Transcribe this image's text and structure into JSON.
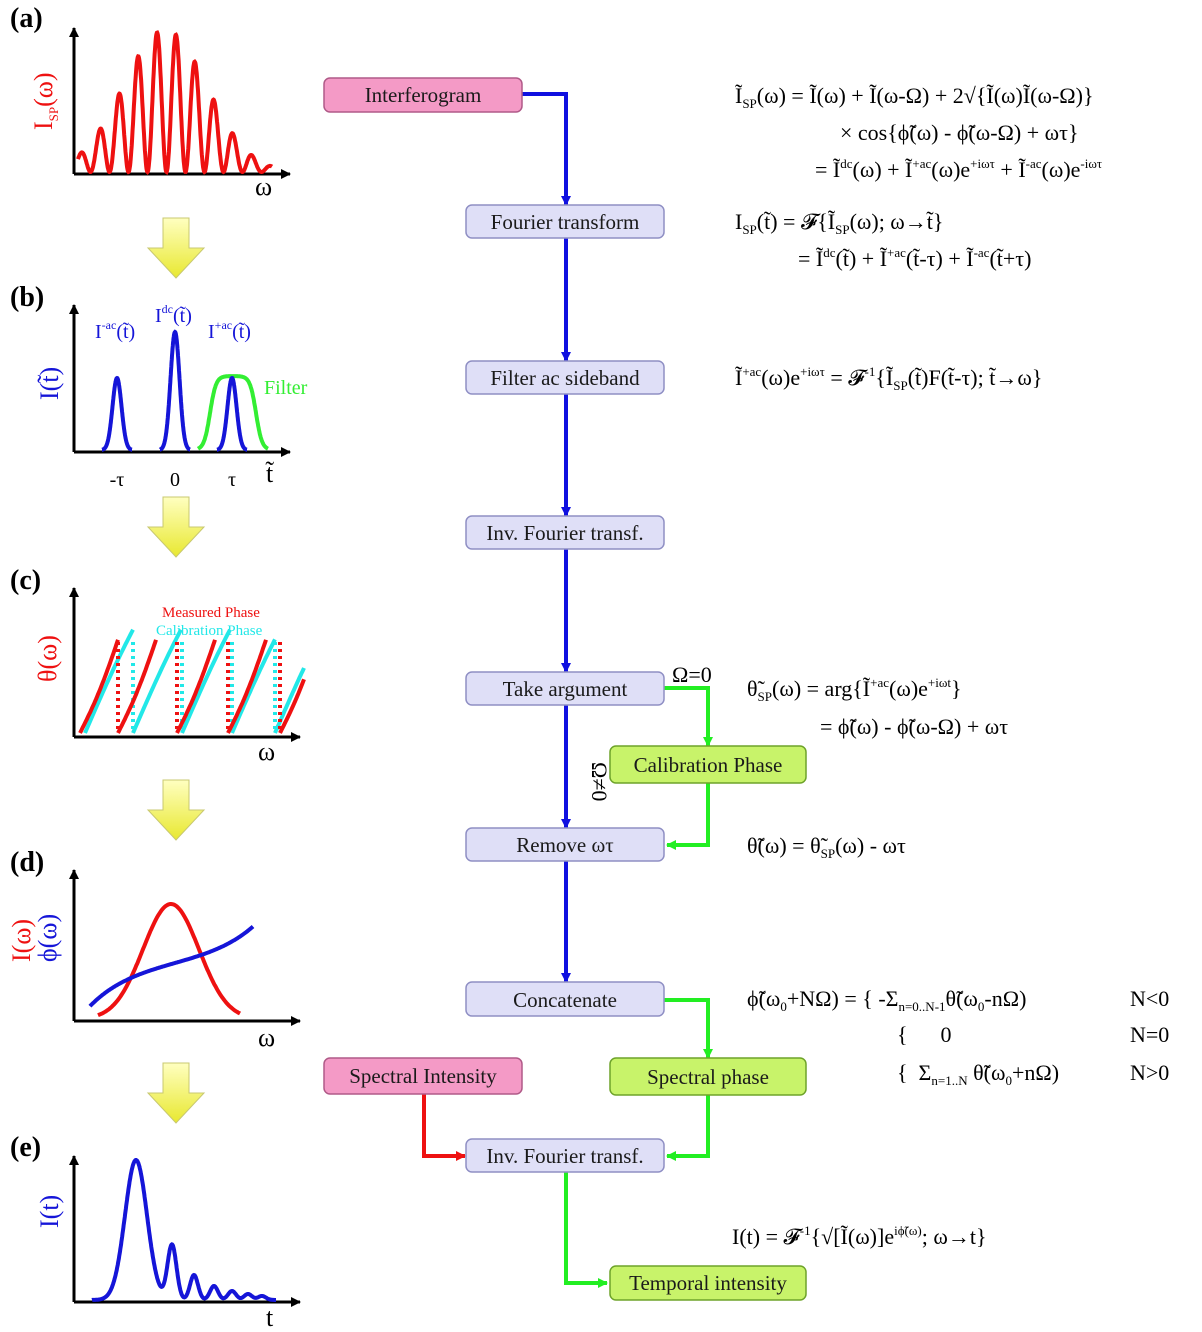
{
  "flow": {
    "interferogram": "Interferogram",
    "fourier_transform": "Fourier transform",
    "filter_sideband": "Filter ac sideband",
    "inv_fourier_1": "Inv. Fourier transf.",
    "take_argument": "Take argument",
    "calibration_phase": "Calibration Phase",
    "remove_wt": "Remove ωτ",
    "concatenate": "Concatenate",
    "spectral_intensity": "Spectral Intensity",
    "spectral_phase": "Spectral phase",
    "inv_fourier_2": "Inv. Fourier transf.",
    "temporal_intensity": "Temporal intensity",
    "omega_zero": "Ω=0",
    "omega_nonzero": "Ω≠0"
  },
  "panels": {
    "a": {
      "label": "(a)",
      "ylabel": "I",
      "ysub": "SP",
      "yarg": "(ω)",
      "xlabel": "ω"
    },
    "b": {
      "label": "(b)",
      "ylabel": "I(t̃)",
      "xlabel": "t̃",
      "peak_minus": "I",
      "peak_minus_sup": "-ac",
      "peak_minus_arg": "(t̃)",
      "peak_dc": "I",
      "peak_dc_sup": "dc",
      "peak_dc_arg": "(t̃)",
      "peak_plus": "I",
      "peak_plus_sup": "+ac",
      "peak_plus_arg": "(t̃)",
      "filter": "Filter",
      "ticks": [
        "-τ",
        "0",
        "τ"
      ]
    },
    "c": {
      "label": "(c)",
      "ylabel": "θ(ω)",
      "xlabel": "ω",
      "legend_measured": "Measured Phase",
      "legend_calibration": "Calibration Phase"
    },
    "d": {
      "label": "(d)",
      "ylabel_red": "I(ω)",
      "ylabel_blue": "ϕ(ω)",
      "xlabel": "ω"
    },
    "e": {
      "label": "(e)",
      "ylabel": "I(t)",
      "xlabel": "t"
    }
  },
  "equations": {
    "eq1_l1": "Ĩ(ω) = Ĩ(ω) + Ĩ(ω-Ω) + 2√{Ĩ(ω)Ĩ(ω-Ω)}",
    "eq1_lhs": "Ĩ",
    "eq1_lhs_sub": "SP",
    "eq1_l1_rest": "(ω) = Ĩ(ω) + Ĩ(ω-Ω) + 2√{Ĩ(ω)Ĩ(ω-Ω)}",
    "eq1_l2": "× cos{ϕ̃(ω) - ϕ̃(ω-Ω) + ωτ}",
    "eq1_l3_a": "= Ĩ",
    "eq1_l3_a_sup": "dc",
    "eq1_l3_b": "(ω) + Ĩ",
    "eq1_l3_b_sup": "+ac",
    "eq1_l3_c": "(ω)e",
    "eq1_l3_c_sup": "+iωτ",
    "eq1_l3_d": " + Ĩ",
    "eq1_l3_d_sup": "-ac",
    "eq1_l3_e": "(ω)e",
    "eq1_l3_e_sup": "-iωτ",
    "eq2_a": "I",
    "eq2_a_sub": "SP",
    "eq2_b": "(t̃) = 𝓕{Ĩ",
    "eq2_b_sub": "SP",
    "eq2_c": "(ω); ω→t̃}",
    "eq2_l2_a": "= Ĩ",
    "eq2_l2_a_sup": "dc",
    "eq2_l2_b": "(t̃) + Ĩ",
    "eq2_l2_b_sup": "+ac",
    "eq2_l2_c": "(t̃-τ) + Ĩ",
    "eq2_l2_c_sup": "-ac",
    "eq2_l2_d": "(t̃+τ)",
    "eq3_a": "Ĩ",
    "eq3_a_sup": "+ac",
    "eq3_b": "(ω)e",
    "eq3_b_sup": "+iωτ",
    "eq3_c": " = 𝓕",
    "eq3_c_sup": "-1",
    "eq3_d": "{Ĩ",
    "eq3_d_sub": "SP",
    "eq3_e": "(t̃)F(t̃-τ); t̃→ω}",
    "eq4_a": "θ̃",
    "eq4_a_sub": "SP",
    "eq4_b": "(ω) = arg{Ĩ",
    "eq4_b_sup": "+ac",
    "eq4_c": "(ω)e",
    "eq4_c_sup": "+iωt",
    "eq4_d": "}",
    "eq4_l2": "= ϕ̃(ω) - ϕ̃(ω-Ω) + ωτ",
    "eq5_a": "θ̃(ω) = θ̃",
    "eq5_a_sub": "SP",
    "eq5_b": "(ω) - ωτ",
    "eq6_a": "ϕ̃(ω",
    "eq6_a_sub": "0",
    "eq6_b": "+NΩ) = { -Σ",
    "eq6_b_sub": "n=0..N-1",
    "eq6_c": "θ̃(ω",
    "eq6_c_sub": "0",
    "eq6_d": "-nΩ)",
    "eq6_cond1": "N<0",
    "eq6_l2": "{      0",
    "eq6_cond2": "N=0",
    "eq6_l3_a": "{  Σ",
    "eq6_l3_a_sub": "n=1..N",
    "eq6_l3_b": " θ̃(ω",
    "eq6_l3_b_sub": "0",
    "eq6_l3_c": "+nΩ)",
    "eq6_cond3": "N>0",
    "eq7_a": "I(t) = 𝓕",
    "eq7_a_sup": "-1",
    "eq7_b": "{√[Ĩ(ω)]e",
    "eq7_b_sup": "iϕ̃(ω)",
    "eq7_c": "; ω→t}"
  },
  "colors": {
    "flow_blue": "#1010e0",
    "flow_green": "#22ee22",
    "flow_red": "#ee1111",
    "curve_red": "#ee1111",
    "curve_blue": "#1515d8",
    "curve_cyan": "#22e8e8",
    "curve_green": "#33ee33",
    "yellow_arrow": "#f2f25a"
  }
}
